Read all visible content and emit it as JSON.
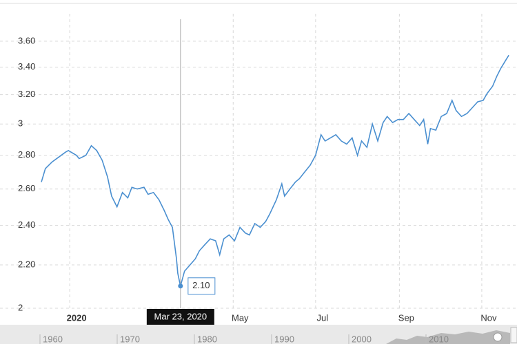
{
  "chart_data": {
    "type": "line",
    "log_scale": true,
    "grid": true,
    "color": "#4a8fd0",
    "x": [
      "2019-12-11",
      "2019-12-14",
      "2019-12-19",
      "2019-12-24",
      "2019-12-29",
      "2019-12-31",
      "2020-01-06",
      "2020-01-08",
      "2020-01-13",
      "2020-01-17",
      "2020-01-21",
      "2020-01-25",
      "2020-01-29",
      "2020-02-01",
      "2020-02-05",
      "2020-02-09",
      "2020-02-13",
      "2020-02-16",
      "2020-02-20",
      "2020-02-25",
      "2020-02-28",
      "2020-03-03",
      "2020-03-07",
      "2020-03-11",
      "2020-03-14",
      "2020-03-17",
      "2020-03-20",
      "2020-03-21",
      "2020-03-23",
      "2020-03-26",
      "2020-03-30",
      "2020-04-03",
      "2020-04-06",
      "2020-04-10",
      "2020-04-14",
      "2020-04-18",
      "2020-04-21",
      "2020-04-24",
      "2020-04-28",
      "2020-05-02",
      "2020-05-06",
      "2020-05-10",
      "2020-05-13",
      "2020-05-17",
      "2020-05-21",
      "2020-05-25",
      "2020-05-28",
      "2020-06-02",
      "2020-06-06",
      "2020-06-08",
      "2020-06-12",
      "2020-06-16",
      "2020-06-19",
      "2020-06-23",
      "2020-06-27",
      "2020-07-01",
      "2020-07-05",
      "2020-07-08",
      "2020-07-12",
      "2020-07-16",
      "2020-07-20",
      "2020-07-24",
      "2020-07-28",
      "2020-08-01",
      "2020-08-04",
      "2020-08-08",
      "2020-08-12",
      "2020-08-16",
      "2020-08-20",
      "2020-08-23",
      "2020-08-27",
      "2020-08-31",
      "2020-09-04",
      "2020-09-08",
      "2020-09-12",
      "2020-09-16",
      "2020-09-19",
      "2020-09-22",
      "2020-09-24",
      "2020-09-28",
      "2020-10-02",
      "2020-10-06",
      "2020-10-10",
      "2020-10-13",
      "2020-10-17",
      "2020-10-21",
      "2020-10-25",
      "2020-10-29",
      "2020-11-02",
      "2020-11-05",
      "2020-11-09",
      "2020-11-12",
      "2020-11-15",
      "2020-11-18",
      "2020-11-21"
    ],
    "values": [
      2.64,
      2.72,
      2.76,
      2.79,
      2.82,
      2.83,
      2.8,
      2.78,
      2.8,
      2.86,
      2.83,
      2.77,
      2.67,
      2.56,
      2.5,
      2.58,
      2.55,
      2.61,
      2.6,
      2.61,
      2.57,
      2.58,
      2.54,
      2.48,
      2.43,
      2.39,
      2.23,
      2.16,
      2.1,
      2.17,
      2.2,
      2.23,
      2.27,
      2.3,
      2.33,
      2.32,
      2.25,
      2.33,
      2.35,
      2.32,
      2.39,
      2.36,
      2.35,
      2.41,
      2.39,
      2.42,
      2.46,
      2.54,
      2.63,
      2.56,
      2.6,
      2.64,
      2.66,
      2.7,
      2.74,
      2.8,
      2.93,
      2.89,
      2.91,
      2.93,
      2.89,
      2.87,
      2.91,
      2.8,
      2.89,
      2.85,
      3.0,
      2.89,
      3.01,
      3.05,
      3.01,
      3.03,
      3.03,
      3.07,
      3.03,
      2.99,
      3.03,
      2.87,
      2.97,
      2.96,
      3.05,
      3.07,
      3.16,
      3.09,
      3.05,
      3.07,
      3.11,
      3.15,
      3.16,
      3.21,
      3.26,
      3.33,
      3.39,
      3.44,
      3.49
    ],
    "xlim": [
      "2019-12-10",
      "2020-11-24"
    ],
    "xticks": [
      {
        "value": "2020-01-01",
        "label": "2020"
      },
      {
        "value": "2020-05-01",
        "label": "May"
      },
      {
        "value": "2020-07-01",
        "label": "Jul"
      },
      {
        "value": "2020-09-01",
        "label": "Sep"
      },
      {
        "value": "2020-11-01",
        "label": "Nov"
      }
    ],
    "ylim": [
      2,
      3.9
    ],
    "yticks": [
      2,
      {
        "value": 2.2,
        "label": "2.20"
      },
      {
        "value": 2.4,
        "label": "2.40"
      },
      {
        "value": 2.6,
        "label": "2.60"
      },
      {
        "value": 2.8,
        "label": "2.80"
      },
      3,
      {
        "value": 3.2,
        "label": "3.20"
      },
      {
        "value": 3.4,
        "label": "3.40"
      },
      {
        "value": 3.6,
        "label": "3.60"
      }
    ],
    "highlight": {
      "x": "2020-03-23",
      "date_label": "Mar 23, 2020",
      "value_label": "2.10"
    },
    "navigator": {
      "labels": [
        "1960",
        "1970",
        "1980",
        "1990",
        "2000",
        "2010"
      ]
    }
  }
}
